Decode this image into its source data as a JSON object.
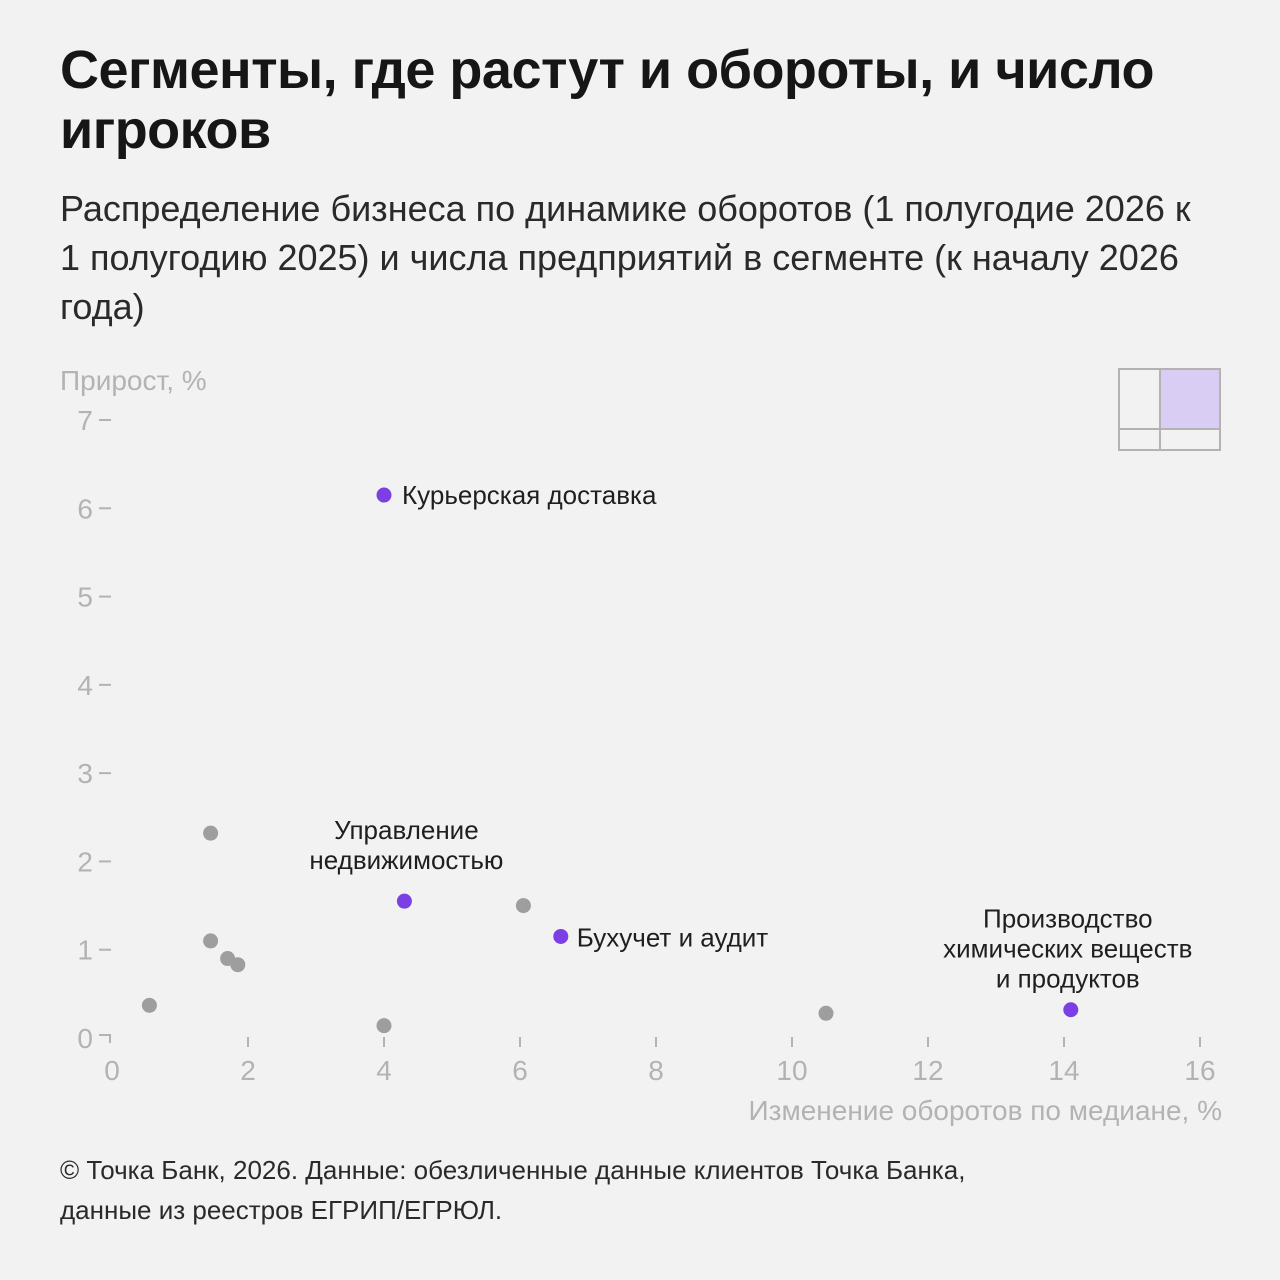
{
  "header": {
    "title": "Сегменты, где растут и обороты, и число игроков",
    "subtitle": "Распределение бизнеса по динамике оборотов (1 полугодие 2026 к 1 полугодию 2025) и числа предприятий в сегменте (к началу 2026 года)"
  },
  "footer": {
    "line1": "© Точка Банк, 2026. Данные: обезличенные данные клиентов Точка Банка,",
    "line2": "данные из реестров ЕГРИП/ЕГРЮЛ."
  },
  "chart_data": {
    "type": "scatter",
    "xlabel": "Изменение оборотов по медиане, %",
    "ylabel": "Прирост, %",
    "xlim": [
      0,
      16
    ],
    "ylim": [
      0,
      7
    ],
    "xticks": [
      "0",
      "2",
      "4",
      "6",
      "8",
      "10",
      "12",
      "14",
      "16"
    ],
    "yticks": [
      "0",
      "1",
      "2",
      "3",
      "4",
      "5",
      "6",
      "7"
    ],
    "colors": {
      "highlight": "#7b3fe4",
      "other": "#9e9e9e",
      "quadrant_fill": "#d9cdf3",
      "quadrant_border": "#b3b3b3"
    },
    "highlighted": [
      {
        "x": 4.0,
        "y": 6.15,
        "label": "Курьерская доставка"
      },
      {
        "x": 4.3,
        "y": 1.55,
        "label": "Управление недвижимостью"
      },
      {
        "x": 6.6,
        "y": 1.15,
        "label": "Бухучет и аудит"
      },
      {
        "x": 14.1,
        "y": 0.32,
        "label": "Производство химических веществ и продуктов"
      }
    ],
    "others": [
      {
        "x": 1.45,
        "y": 2.32
      },
      {
        "x": 1.45,
        "y": 1.1
      },
      {
        "x": 1.7,
        "y": 0.9
      },
      {
        "x": 1.85,
        "y": 0.83
      },
      {
        "x": 0.55,
        "y": 0.37
      },
      {
        "x": 4.0,
        "y": 0.14
      },
      {
        "x": 6.05,
        "y": 1.5
      },
      {
        "x": 10.5,
        "y": 0.28
      }
    ]
  }
}
